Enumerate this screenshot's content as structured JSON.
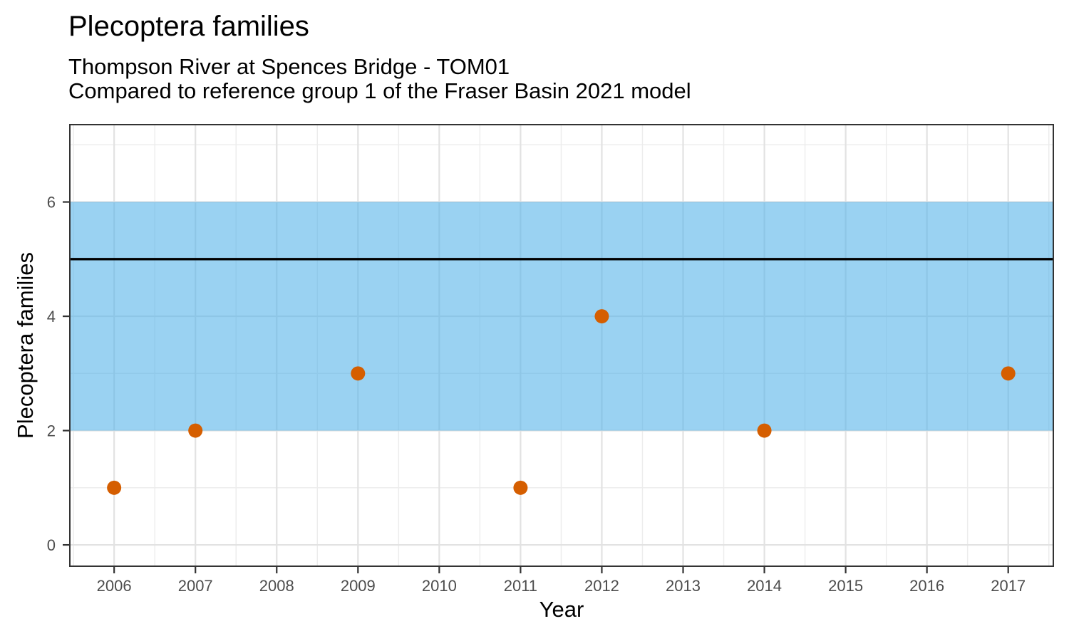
{
  "title": "Plecoptera families",
  "subtitle": {
    "line1": "Thompson River at Spences Bridge - TOM01",
    "line2": "Compared to reference group 1 of the Fraser Basin 2021 model"
  },
  "chart_data": {
    "type": "scatter",
    "title": "Plecoptera families",
    "xlabel": "Year",
    "ylabel": "Plecoptera families",
    "x_domain": [
      2005.455,
      2017.555
    ],
    "y_domain": [
      -0.373,
      7.353
    ],
    "x_ticks": [
      2006,
      2007,
      2008,
      2009,
      2010,
      2011,
      2012,
      2013,
      2014,
      2015,
      2016,
      2017
    ],
    "x_minor": [
      2005.5,
      2006.5,
      2007.5,
      2008.5,
      2009.5,
      2010.5,
      2011.5,
      2012.5,
      2013.5,
      2014.5,
      2015.5,
      2016.5,
      2017.5
    ],
    "y_ticks": [
      0,
      2,
      4,
      6
    ],
    "y_minor": [
      1,
      3,
      5,
      7
    ],
    "points": [
      {
        "year": 2006,
        "value": 1
      },
      {
        "year": 2007,
        "value": 2
      },
      {
        "year": 2009,
        "value": 3
      },
      {
        "year": 2011,
        "value": 1
      },
      {
        "year": 2012,
        "value": 4
      },
      {
        "year": 2014,
        "value": 2
      },
      {
        "year": 2017,
        "value": 3
      }
    ],
    "reference_band": {
      "ymin": 2,
      "ymax": 6,
      "color": "#56B4E9",
      "opacity": 0.6
    },
    "reference_line": {
      "y": 5,
      "color": "#000000"
    },
    "legend": "none",
    "grid": true,
    "colors": {
      "point": "#D55E00",
      "grid_major": "#E2E2E2",
      "grid_minor": "#ECECEC",
      "panel_border": "#333333",
      "tick": "#333333",
      "tick_label": "#4D4D4D",
      "text": "#000000",
      "panel_background": "#FFFFFF"
    }
  }
}
